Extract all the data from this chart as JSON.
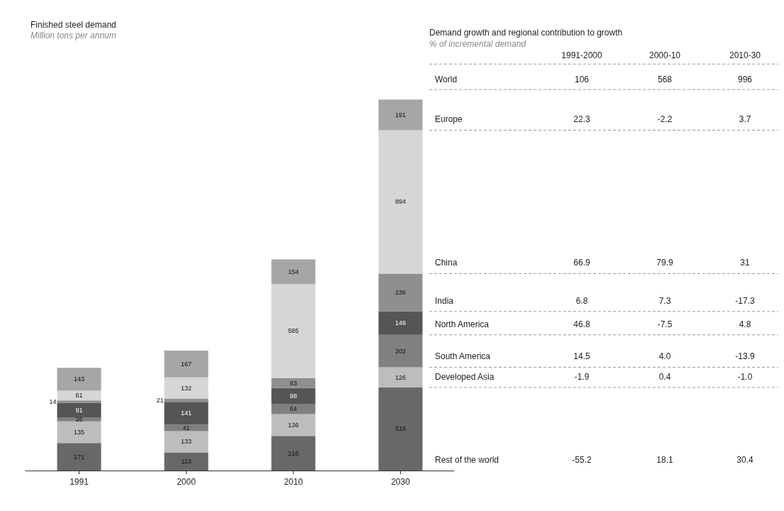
{
  "chart_data": {
    "type": "bar",
    "title": "Finished steel demand",
    "subtitle": "Million tons per annum",
    "categories": [
      "1991",
      "2000",
      "2010",
      "2030"
    ],
    "stacked": true,
    "data_labels": true,
    "legend": false,
    "grid": false,
    "series": [
      {
        "name": "Rest of the world",
        "color": "#686868",
        "values": [
          171,
          113,
          216,
          518
        ]
      },
      {
        "name": "Developed Asia",
        "color": "#bdbdbd",
        "values": [
          135,
          133,
          136,
          126
        ]
      },
      {
        "name": "South America",
        "color": "#808080",
        "values": [
          26,
          41,
          64,
          202
        ]
      },
      {
        "name": "North America",
        "color": "#555555",
        "values": [
          91,
          141,
          98,
          146
        ]
      },
      {
        "name": "India",
        "color": "#8f8f8f",
        "values": [
          14,
          21,
          63,
          236
        ]
      },
      {
        "name": "China",
        "color": "#d6d6d6",
        "values": [
          61,
          132,
          585,
          894
        ]
      },
      {
        "name": "Europe",
        "color": "#a6a6a6",
        "values": [
          143,
          167,
          154,
          191
        ]
      }
    ],
    "annotations": [
      "Demand growth and regional contribution to growth",
      "% of incremental demand",
      "1991-2000",
      "2000-10",
      "2010-30",
      "World",
      "106",
      "568",
      "996",
      "-55.2",
      "18.1",
      "30.4",
      "-1.9",
      "0.4",
      "-1.0",
      "14.5",
      "4.0",
      "-13.9",
      "46.8",
      "-7.5",
      "4.8",
      "6.8",
      "7.3",
      "-17.3",
      "66.9",
      "79.9",
      "31",
      "22.3",
      "-2.2",
      "3.7"
    ]
  }
}
